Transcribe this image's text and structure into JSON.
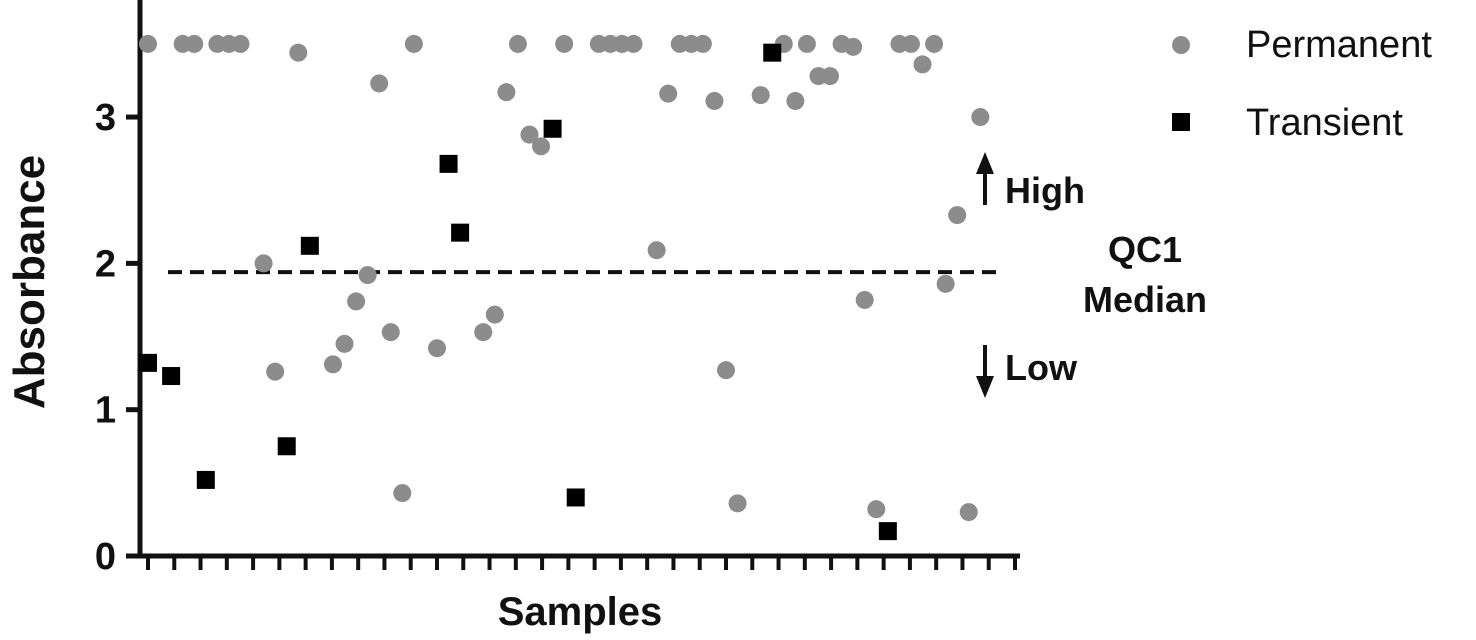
{
  "chart_data": {
    "type": "scatter",
    "xlabel": "Samples",
    "ylabel": "Absorbance",
    "ylim": [
      0,
      3.8
    ],
    "yticks": [
      {
        "value": 0,
        "label": "0"
      },
      {
        "value": 1,
        "label": "1"
      },
      {
        "value": 2,
        "label": "2"
      },
      {
        "value": 3,
        "label": "3"
      }
    ],
    "xlim": [
      1,
      76
    ],
    "x_tick_count": 34,
    "reference_line": {
      "value": 1.94,
      "style": "dashed",
      "label_lines": [
        "QC1",
        "Median"
      ]
    },
    "annotations": {
      "high": "High",
      "low": "Low"
    },
    "legend": {
      "position": "right",
      "entries": [
        "Permanent",
        "Transient"
      ]
    },
    "series": [
      {
        "name": "Permanent",
        "marker": "circle",
        "color": "#8c8c8c",
        "points": [
          {
            "x": 1,
            "y": 3.5
          },
          {
            "x": 4,
            "y": 3.5
          },
          {
            "x": 5,
            "y": 3.5
          },
          {
            "x": 7,
            "y": 3.5
          },
          {
            "x": 8,
            "y": 3.5
          },
          {
            "x": 9,
            "y": 3.5
          },
          {
            "x": 11,
            "y": 2.0
          },
          {
            "x": 12,
            "y": 1.26
          },
          {
            "x": 14,
            "y": 3.44
          },
          {
            "x": 17,
            "y": 1.31
          },
          {
            "x": 18,
            "y": 1.45
          },
          {
            "x": 19,
            "y": 1.74
          },
          {
            "x": 20,
            "y": 1.92
          },
          {
            "x": 21,
            "y": 3.23
          },
          {
            "x": 22,
            "y": 1.53
          },
          {
            "x": 23,
            "y": 0.43
          },
          {
            "x": 24,
            "y": 3.5
          },
          {
            "x": 26,
            "y": 1.42
          },
          {
            "x": 30,
            "y": 1.53
          },
          {
            "x": 31,
            "y": 1.65
          },
          {
            "x": 32,
            "y": 3.17
          },
          {
            "x": 33,
            "y": 3.5
          },
          {
            "x": 34,
            "y": 2.88
          },
          {
            "x": 35,
            "y": 2.8
          },
          {
            "x": 37,
            "y": 3.5
          },
          {
            "x": 40,
            "y": 3.5
          },
          {
            "x": 41,
            "y": 3.5
          },
          {
            "x": 42,
            "y": 3.5
          },
          {
            "x": 43,
            "y": 3.5
          },
          {
            "x": 45,
            "y": 2.09
          },
          {
            "x": 46,
            "y": 3.16
          },
          {
            "x": 47,
            "y": 3.5
          },
          {
            "x": 48,
            "y": 3.5
          },
          {
            "x": 49,
            "y": 3.5
          },
          {
            "x": 50,
            "y": 3.11
          },
          {
            "x": 51,
            "y": 1.27
          },
          {
            "x": 52,
            "y": 0.36
          },
          {
            "x": 54,
            "y": 3.15
          },
          {
            "x": 56,
            "y": 3.5
          },
          {
            "x": 58,
            "y": 3.5
          },
          {
            "x": 57,
            "y": 3.11
          },
          {
            "x": 59,
            "y": 3.28
          },
          {
            "x": 60,
            "y": 3.28
          },
          {
            "x": 61,
            "y": 3.5
          },
          {
            "x": 62,
            "y": 3.48
          },
          {
            "x": 63,
            "y": 1.75
          },
          {
            "x": 64,
            "y": 0.32
          },
          {
            "x": 66,
            "y": 3.5
          },
          {
            "x": 67,
            "y": 3.5
          },
          {
            "x": 68,
            "y": 3.36
          },
          {
            "x": 69,
            "y": 3.5
          },
          {
            "x": 70,
            "y": 1.86
          },
          {
            "x": 71,
            "y": 2.33
          },
          {
            "x": 72,
            "y": 0.3
          },
          {
            "x": 73,
            "y": 3.0
          }
        ]
      },
      {
        "name": "Transient",
        "marker": "square",
        "color": "#000000",
        "points": [
          {
            "x": 1,
            "y": 1.32
          },
          {
            "x": 3,
            "y": 1.23
          },
          {
            "x": 6,
            "y": 0.52
          },
          {
            "x": 13,
            "y": 0.75
          },
          {
            "x": 15,
            "y": 2.12
          },
          {
            "x": 27,
            "y": 2.68
          },
          {
            "x": 28,
            "y": 2.21
          },
          {
            "x": 36,
            "y": 2.92
          },
          {
            "x": 38,
            "y": 0.4
          },
          {
            "x": 55,
            "y": 3.44
          },
          {
            "x": 65,
            "y": 0.17
          }
        ]
      }
    ]
  }
}
